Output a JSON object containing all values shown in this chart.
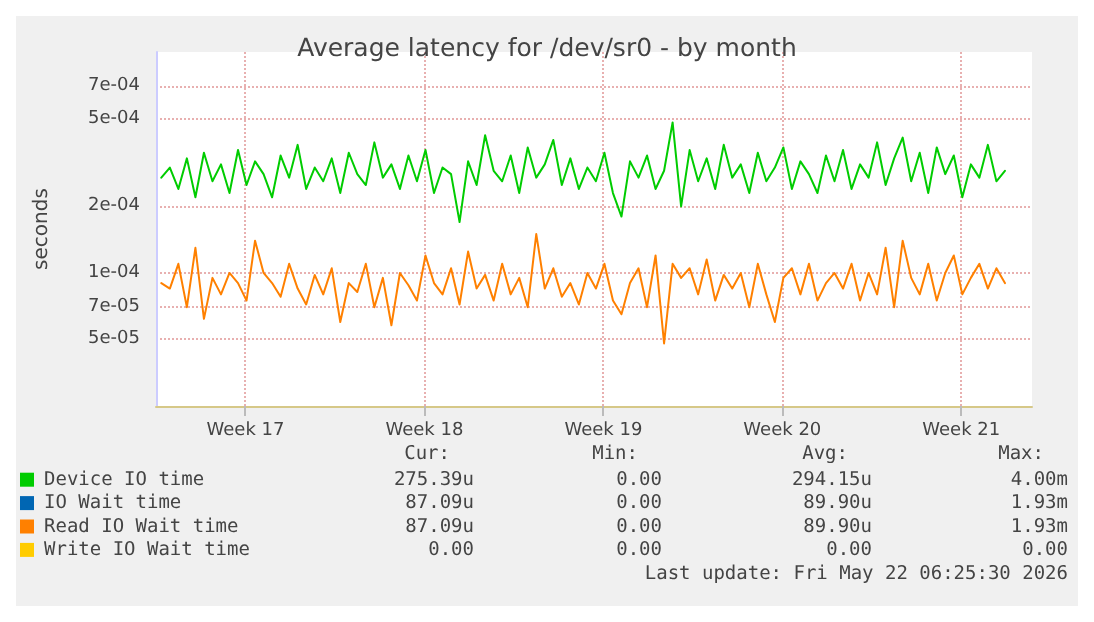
{
  "chart_data": {
    "type": "line",
    "title": "Average latency for /dev/sr0 - by month",
    "ylabel": "seconds",
    "log": "y",
    "grid": true,
    "legend": "bottom",
    "marker": "none",
    "line_style": "solid",
    "ylim": [
      2.5e-05,
      0.001
    ],
    "yticks": [
      {
        "value": 5e-05,
        "label": "5e-05"
      },
      {
        "value": 7e-05,
        "label": "7e-05"
      },
      {
        "value": 0.0001,
        "label": "1e-04"
      },
      {
        "value": 0.0002,
        "label": "2e-04"
      },
      {
        "value": 0.0005,
        "label": "5e-04"
      },
      {
        "value": 0.0007,
        "label": "7e-04"
      }
    ],
    "xlim": [
      "2026-04-18T00:00",
      "2026-05-22T06:25"
    ],
    "xticks": [
      {
        "value": "2026-04-21T12:00",
        "label": "Week 17"
      },
      {
        "value": "2026-04-28T12:00",
        "label": "Week 18"
      },
      {
        "value": "2026-05-05T12:00",
        "label": "Week 19"
      },
      {
        "value": "2026-05-12T12:00",
        "label": "Week 20"
      },
      {
        "value": "2026-05-19T12:00",
        "label": "Week 21"
      }
    ],
    "x": [
      "2026-04-18T05:00",
      "2026-04-18T13:00",
      "2026-04-18T21:00",
      "2026-04-19T05:00",
      "2026-04-19T13:00",
      "2026-04-19T21:00",
      "2026-04-20T05:00",
      "2026-04-20T13:00",
      "2026-04-20T21:00",
      "2026-04-21T05:00",
      "2026-04-21T13:00",
      "2026-04-21T21:00",
      "2026-04-22T05:00",
      "2026-04-22T13:00",
      "2026-04-22T21:00",
      "2026-04-23T05:00",
      "2026-04-23T13:00",
      "2026-04-23T21:00",
      "2026-04-24T05:00",
      "2026-04-24T13:00",
      "2026-04-24T21:00",
      "2026-04-25T05:00",
      "2026-04-25T13:00",
      "2026-04-25T21:00",
      "2026-04-26T05:00",
      "2026-04-26T13:00",
      "2026-04-26T21:00",
      "2026-04-27T05:00",
      "2026-04-27T13:00",
      "2026-04-27T21:00",
      "2026-04-28T05:00",
      "2026-04-28T13:00",
      "2026-04-28T21:00",
      "2026-04-29T05:00",
      "2026-04-29T13:00",
      "2026-04-29T21:00",
      "2026-04-30T05:00",
      "2026-04-30T13:00",
      "2026-04-30T21:00",
      "2026-05-01T05:00",
      "2026-05-01T13:00",
      "2026-05-01T21:00",
      "2026-05-02T05:00",
      "2026-05-02T13:00",
      "2026-05-02T21:00",
      "2026-05-03T05:00",
      "2026-05-03T13:00",
      "2026-05-03T21:00",
      "2026-05-04T05:00",
      "2026-05-04T13:00",
      "2026-05-04T21:00",
      "2026-05-05T05:00",
      "2026-05-05T13:00",
      "2026-05-05T21:00",
      "2026-05-06T05:00",
      "2026-05-06T13:00",
      "2026-05-06T21:00",
      "2026-05-07T05:00",
      "2026-05-07T13:00",
      "2026-05-07T21:00",
      "2026-05-08T05:00",
      "2026-05-08T13:00",
      "2026-05-08T21:00",
      "2026-05-09T05:00",
      "2026-05-09T13:00",
      "2026-05-09T21:00",
      "2026-05-10T05:00",
      "2026-05-10T13:00",
      "2026-05-10T21:00",
      "2026-05-11T05:00",
      "2026-05-11T13:00",
      "2026-05-11T21:00",
      "2026-05-12T05:00",
      "2026-05-12T13:00",
      "2026-05-12T21:00",
      "2026-05-13T05:00",
      "2026-05-13T13:00",
      "2026-05-13T21:00",
      "2026-05-14T05:00",
      "2026-05-14T13:00",
      "2026-05-14T21:00",
      "2026-05-15T05:00",
      "2026-05-15T13:00",
      "2026-05-15T21:00",
      "2026-05-16T05:00",
      "2026-05-16T13:00",
      "2026-05-16T21:00",
      "2026-05-17T05:00",
      "2026-05-17T13:00",
      "2026-05-17T21:00",
      "2026-05-18T05:00",
      "2026-05-18T13:00",
      "2026-05-18T21:00",
      "2026-05-19T05:00",
      "2026-05-19T13:00",
      "2026-05-19T21:00",
      "2026-05-20T05:00",
      "2026-05-20T13:00",
      "2026-05-20T21:00",
      "2026-05-21T05:00"
    ],
    "series": [
      {
        "name": "Device IO time",
        "color": "#00cc00",
        "values": [
          0.00027,
          0.0003,
          0.00024,
          0.00033,
          0.00022,
          0.00035,
          0.00026,
          0.00031,
          0.00023,
          0.00036,
          0.00025,
          0.00032,
          0.00028,
          0.00022,
          0.00034,
          0.00027,
          0.00038,
          0.00024,
          0.0003,
          0.00026,
          0.00033,
          0.00023,
          0.00035,
          0.00028,
          0.00025,
          0.00039,
          0.00027,
          0.00031,
          0.00024,
          0.00034,
          0.00026,
          0.00036,
          0.00023,
          0.0003,
          0.00028,
          0.00017,
          0.00032,
          0.00025,
          0.00042,
          0.00029,
          0.00026,
          0.00034,
          0.00023,
          0.00037,
          0.00027,
          0.00031,
          0.0004,
          0.00025,
          0.00033,
          0.00024,
          0.0003,
          0.00026,
          0.00035,
          0.00023,
          0.00018,
          0.00032,
          0.00027,
          0.00034,
          0.00024,
          0.00029,
          0.00048,
          0.0002,
          0.00036,
          0.00026,
          0.00033,
          0.00024,
          0.00038,
          0.00027,
          0.00031,
          0.00023,
          0.00035,
          0.00026,
          0.0003,
          0.00037,
          0.00024,
          0.00032,
          0.00028,
          0.00023,
          0.00034,
          0.00026,
          0.00036,
          0.00024,
          0.00031,
          0.00027,
          0.00039,
          0.00025,
          0.00033,
          0.00041,
          0.00026,
          0.00035,
          0.00023,
          0.00037,
          0.00028,
          0.00034,
          0.00022,
          0.00031,
          0.00027,
          0.00038,
          0.00026,
          0.00029
        ]
      },
      {
        "name": "IO Wait time",
        "color": "#0066b3",
        "values": [
          null,
          null,
          null,
          null,
          null,
          null,
          null,
          null,
          null,
          null,
          null,
          null,
          null,
          null,
          null,
          null,
          null,
          null,
          null,
          null,
          null,
          null,
          null,
          null,
          null,
          null,
          null,
          null,
          null,
          null,
          null,
          null,
          null,
          null,
          null,
          null,
          null,
          null,
          null,
          null,
          null,
          null,
          null,
          null,
          null,
          null,
          null,
          null,
          null,
          null,
          null,
          null,
          null,
          null,
          null,
          null,
          null,
          null,
          null,
          null,
          null,
          null,
          null,
          null,
          null,
          null,
          null,
          null,
          null,
          null,
          null,
          null,
          null,
          null,
          null,
          null,
          null,
          null,
          null,
          null,
          null,
          null,
          null,
          null,
          null,
          null,
          null,
          null,
          null,
          null,
          null,
          null,
          null,
          null,
          null,
          null,
          null,
          null,
          null,
          null
        ]
      },
      {
        "name": "Read IO Wait time",
        "color": "#ff8000",
        "values": [
          9e-05,
          8.5e-05,
          0.00011,
          7e-05,
          0.00013,
          6.2e-05,
          9.5e-05,
          8e-05,
          0.0001,
          9e-05,
          7.5e-05,
          0.00014,
          0.0001,
          9e-05,
          7.8e-05,
          0.00011,
          8.5e-05,
          7.2e-05,
          9.8e-05,
          8e-05,
          0.000105,
          6e-05,
          9e-05,
          8.2e-05,
          0.00011,
          7e-05,
          9.5e-05,
          5.8e-05,
          0.0001,
          8.8e-05,
          7.5e-05,
          0.00012,
          9e-05,
          8e-05,
          0.000105,
          7.2e-05,
          0.000125,
          8.5e-05,
          9.8e-05,
          7.5e-05,
          0.00011,
          8e-05,
          9.5e-05,
          7e-05,
          0.00015,
          8.5e-05,
          0.000105,
          7.8e-05,
          9e-05,
          7.2e-05,
          0.0001,
          8.5e-05,
          0.00011,
          7.5e-05,
          6.5e-05,
          9e-05,
          0.000105,
          7e-05,
          0.00012,
          4.8e-05,
          0.00011,
          9.5e-05,
          0.000105,
          8e-05,
          0.000115,
          7.5e-05,
          9.8e-05,
          8.5e-05,
          0.0001,
          7e-05,
          0.00011,
          8e-05,
          6e-05,
          9.5e-05,
          0.000105,
          8e-05,
          0.00011,
          7.5e-05,
          9e-05,
          0.0001,
          8.5e-05,
          0.00011,
          7.5e-05,
          0.0001,
          8e-05,
          0.00013,
          7e-05,
          0.00014,
          9.5e-05,
          8e-05,
          0.00011,
          7.5e-05,
          0.0001,
          0.00012,
          8e-05,
          9.5e-05,
          0.00011,
          8.5e-05,
          0.000105,
          9e-05
        ]
      },
      {
        "name": "Write IO Wait time",
        "color": "#ffcc00",
        "values": [
          null,
          null,
          null,
          null,
          null,
          null,
          null,
          null,
          null,
          null,
          null,
          null,
          null,
          null,
          null,
          null,
          null,
          null,
          null,
          null,
          null,
          null,
          null,
          null,
          null,
          null,
          null,
          null,
          null,
          null,
          null,
          null,
          null,
          null,
          null,
          null,
          null,
          null,
          null,
          null,
          null,
          null,
          null,
          null,
          null,
          null,
          null,
          null,
          null,
          null,
          null,
          null,
          null,
          null,
          null,
          null,
          null,
          null,
          null,
          null,
          null,
          null,
          null,
          null,
          null,
          null,
          null,
          null,
          null,
          null,
          null,
          null,
          null,
          null,
          null,
          null,
          null,
          null,
          null,
          null,
          null,
          null,
          null,
          null,
          null,
          null,
          null,
          null,
          null,
          null,
          null,
          null,
          null,
          null,
          null,
          null,
          null,
          null,
          null,
          null
        ]
      }
    ],
    "annotations": [
      "Cur:",
      "Min:",
      "Avg:",
      "Max:",
      "275.39u",
      "0.00",
      "294.15u",
      "4.00m",
      "87.09u",
      "0.00",
      "89.90u",
      "1.93m",
      "87.09u",
      "0.00",
      "89.90u",
      "1.93m",
      "0.00",
      "0.00",
      "0.00",
      "0.00",
      "Last update: Fri May 22 06:25:30 2026"
    ]
  }
}
